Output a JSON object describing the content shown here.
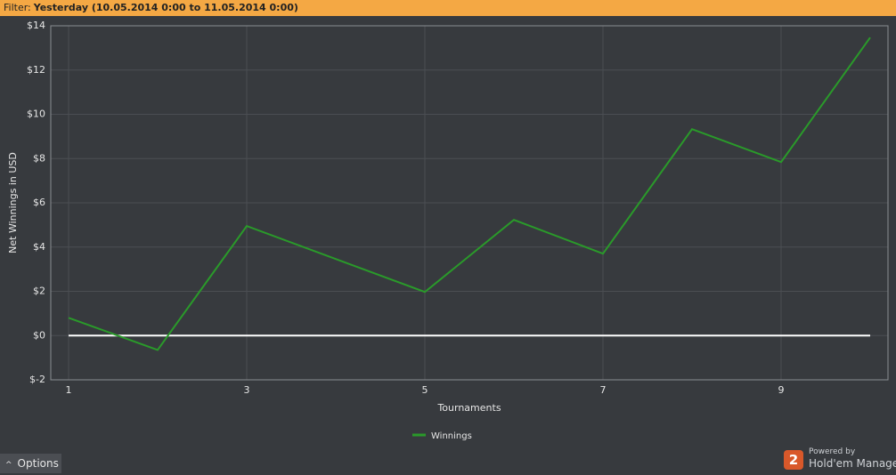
{
  "filter": {
    "label": "Filter:",
    "value": "Yesterday (10.05.2014 0:00 to 11.05.2014 0:00)"
  },
  "chart_data": {
    "type": "line",
    "xlabel": "Tournaments",
    "ylabel": "Net Winnings in USD",
    "x": [
      1,
      2,
      3,
      4,
      5,
      6,
      7,
      8,
      9,
      10
    ],
    "series": [
      {
        "name": "Winnings",
        "color": "#2a9a2a",
        "values": [
          0.8,
          -0.65,
          4.95,
          3.46,
          1.97,
          5.23,
          3.7,
          9.33,
          7.84,
          13.47
        ]
      }
    ],
    "xlim": [
      0.8,
      10.2
    ],
    "xticks": [
      1,
      3,
      5,
      7,
      9
    ],
    "ylim": [
      -2,
      14
    ],
    "yticks": [
      {
        "value": -2,
        "label": "$-2"
      },
      {
        "value": 0,
        "label": "$0"
      },
      {
        "value": 2,
        "label": "$2"
      },
      {
        "value": 4,
        "label": "$4"
      },
      {
        "value": 6,
        "label": "$6"
      },
      {
        "value": 8,
        "label": "$8"
      },
      {
        "value": 10,
        "label": "$10"
      },
      {
        "value": 12,
        "label": "$12"
      },
      {
        "value": 14,
        "label": "$14"
      }
    ],
    "grid": true,
    "legend": "bottom"
  },
  "options": "Options",
  "branding": {
    "icon": "2",
    "powered": "Powered by",
    "product": "Hold'em Manager"
  }
}
